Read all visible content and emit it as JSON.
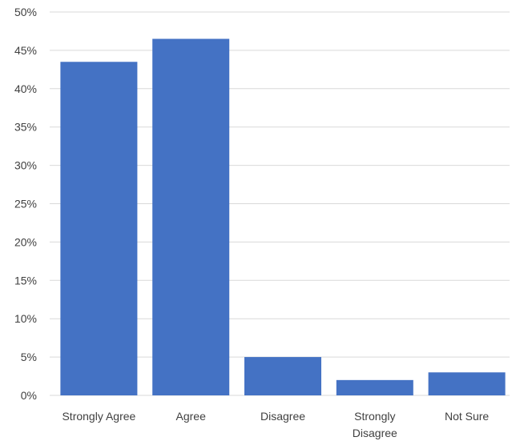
{
  "chart_data": {
    "type": "bar",
    "title": "",
    "xlabel": "",
    "ylabel": "",
    "categories": [
      [
        "Strongly Agree"
      ],
      [
        "Agree"
      ],
      [
        "Disagree"
      ],
      [
        "Strongly",
        "Disagree"
      ],
      [
        "Not Sure"
      ]
    ],
    "values": [
      43.5,
      46.5,
      5,
      2,
      3
    ],
    "ylim": [
      0,
      50
    ],
    "yticks": [
      "0%",
      "5%",
      "10%",
      "15%",
      "20%",
      "25%",
      "30%",
      "35%",
      "40%",
      "45%",
      "50%"
    ],
    "grid": true,
    "legend": "none",
    "bar_color": "#4472c4"
  }
}
